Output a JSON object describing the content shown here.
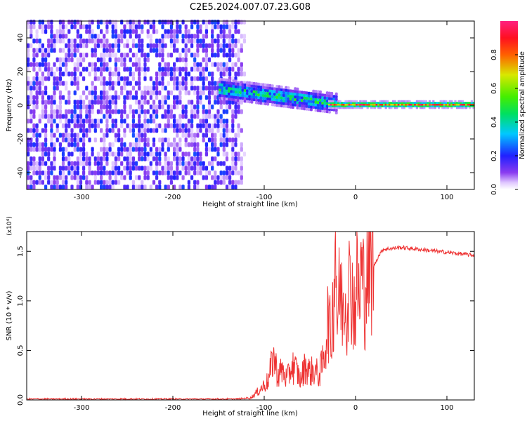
{
  "figure": {
    "title": "C2E5.2024.007.07.23.G08"
  },
  "chart_data": [
    {
      "type": "heatmap",
      "xlabel": "Height of straight line (km)",
      "ylabel": "Frequency (Hz)",
      "xlim": [
        -360,
        130
      ],
      "ylim": [
        -50,
        50
      ],
      "xticks": [
        -300,
        -200,
        -100,
        0,
        100
      ],
      "yticks": [
        -40,
        -20,
        0,
        20,
        40
      ],
      "xtick_labels": [
        "-300",
        "-200",
        "-100",
        "0",
        "100"
      ],
      "ytick_labels": [
        "-40",
        "-20",
        "0",
        "20",
        "40"
      ],
      "colorbar": {
        "label": "Normalized spectral amplitude",
        "range": [
          0,
          1
        ],
        "ticks": [
          0.0,
          0.2,
          0.4,
          0.6,
          0.8
        ],
        "tick_labels": [
          "0.0",
          "0.2",
          "0.4",
          "0.6",
          "0.8"
        ],
        "colormap": "rainbow (white-purple-blue-cyan-green-yellow-red-magenta)"
      },
      "regions": [
        {
          "name": "noise",
          "x_range": [
            -360,
            -120
          ],
          "freq_range": [
            -50,
            50
          ],
          "amplitude": [
            0.0,
            0.15
          ]
        },
        {
          "name": "fading signal",
          "x_range": [
            -150,
            -20
          ],
          "freq_center_start": 9,
          "freq_center_end": 0,
          "amplitude": [
            0.2,
            0.55
          ]
        },
        {
          "name": "steady signal",
          "x_range": [
            -30,
            130
          ],
          "freq_center": 0,
          "amplitude": [
            0.6,
            1.0
          ]
        }
      ]
    },
    {
      "type": "line",
      "xlabel": "Height of straight line (km)",
      "ylabel": "SNR (10 * v/v)",
      "y_multiplier": "(x10⁴)",
      "xlim": [
        -360,
        130
      ],
      "ylim": [
        0,
        1.7
      ],
      "xticks": [
        -300,
        -200,
        -100,
        0,
        100
      ],
      "yticks": [
        0.0,
        0.5,
        1.0,
        1.5
      ],
      "xtick_labels": [
        "-300",
        "-200",
        "-100",
        "0",
        "100"
      ],
      "ytick_labels": [
        "0.0",
        "0.5",
        "1.0",
        "1.5"
      ],
      "color": "#ee3333",
      "series": [
        {
          "x": [
            -360,
            -300,
            -200,
            -130,
            -115,
            -105,
            -95,
            -90,
            -85,
            -80,
            -75,
            -70,
            -65,
            -60,
            -55,
            -50,
            -45,
            -40,
            -35,
            -30,
            -27,
            -24,
            -22,
            -20,
            -17,
            -14,
            -12,
            -10,
            -8,
            -6,
            -4,
            -2,
            0,
            2,
            4,
            6,
            8,
            10,
            12,
            15,
            20,
            25,
            30,
            40,
            50,
            60,
            70,
            80,
            90,
            100,
            110,
            120,
            130
          ],
          "y": [
            0.01,
            0.01,
            0.01,
            0.01,
            0.02,
            0.1,
            0.2,
            0.45,
            0.25,
            0.3,
            0.2,
            0.35,
            0.3,
            0.2,
            0.35,
            0.28,
            0.3,
            0.25,
            0.4,
            0.85,
            0.6,
            1.05,
            1.7,
            0.8,
            1.15,
            0.9,
            1.2,
            0.85,
            1.3,
            1.05,
            1.2,
            0.9,
            1.0,
            1.25,
            0.95,
            1.3,
            1.2,
            1.05,
            1.3,
            1.3,
            1.35,
            1.45,
            1.52,
            1.53,
            1.54,
            1.53,
            1.52,
            1.51,
            1.5,
            1.49,
            1.48,
            1.47,
            1.46
          ]
        }
      ]
    }
  ]
}
